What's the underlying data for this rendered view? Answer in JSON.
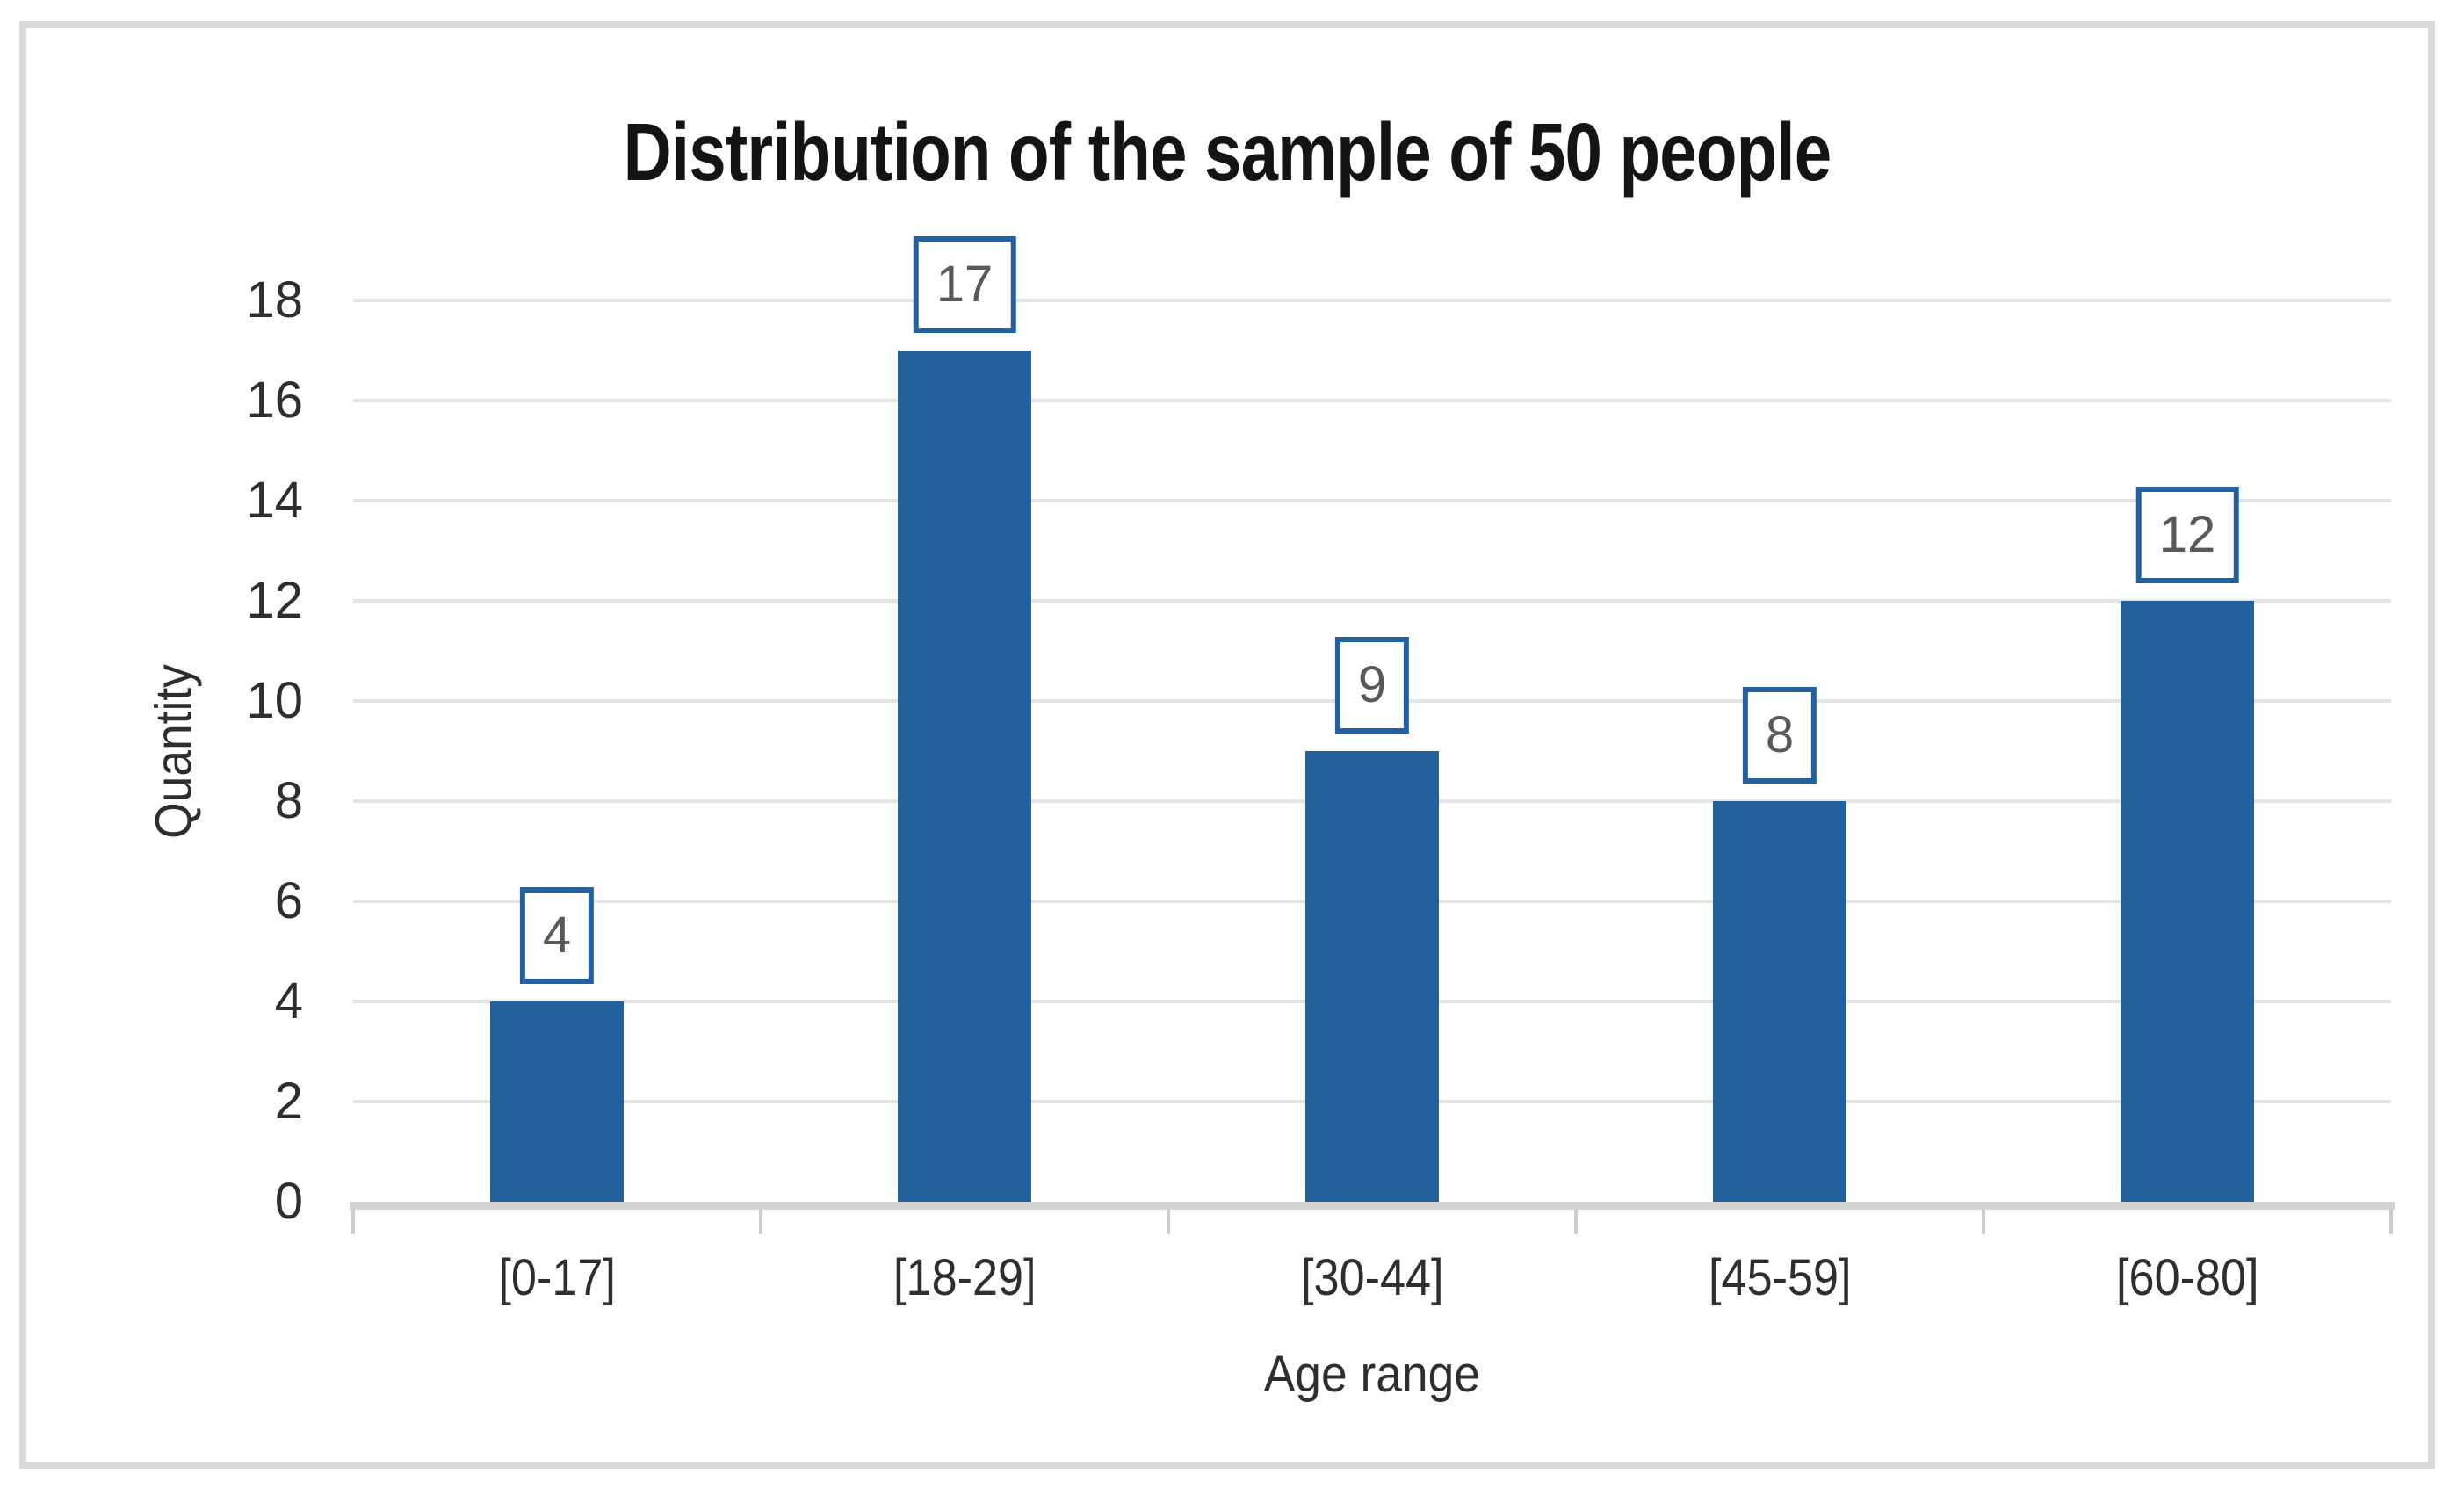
{
  "chart_data": {
    "type": "bar",
    "title": "Distribution of the sample of 50 people",
    "categories": [
      "[0-17]",
      "[18-29]",
      "[30-44]",
      "[45-59]",
      "[60-80]"
    ],
    "values": [
      4,
      17,
      9,
      8,
      12
    ],
    "data_labels": [
      "4",
      "17",
      "9",
      "8",
      "12"
    ],
    "xlabel": "Age range",
    "ylabel": "Quantity",
    "ylim": [
      0,
      18
    ],
    "yticks": [
      0,
      2,
      4,
      6,
      8,
      10,
      12,
      14,
      16,
      18
    ],
    "grid": true,
    "legend_position": "none",
    "colors": {
      "bar": "#25609E",
      "data_label_border": "#25609E",
      "data_label_text": "#595959",
      "axis_text": "#2E2E2E",
      "title_text": "#141414",
      "gridline": "#E4E4E4",
      "axis_line": "#D3D3D3",
      "tick_mark": "#CCCCCC",
      "frame_border": "#D9D9D9",
      "background": "#FFFFFF"
    }
  }
}
